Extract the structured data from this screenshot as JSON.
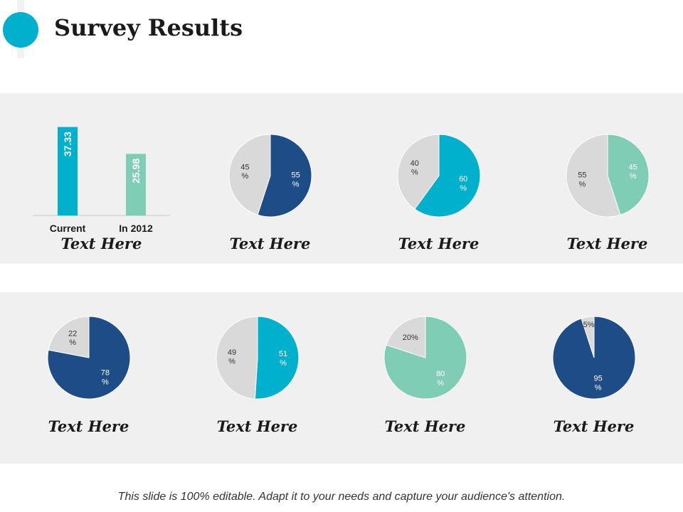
{
  "header": {
    "title": "Survey Results"
  },
  "colors": {
    "accent": "#00b0cc",
    "navy": "#1e4c86",
    "teal": "#00b0cc",
    "mint": "#7ecdb4",
    "gray": "#d9d9d9",
    "band": "#f0f0f0"
  },
  "chart_data": [
    {
      "type": "bar",
      "title": "",
      "categories": [
        "Current",
        "In 2012"
      ],
      "values": [
        37.33,
        25.98
      ],
      "value_labels": [
        "37.33",
        "25.98"
      ],
      "colors": [
        "#00b0cc",
        "#7ecdb4"
      ],
      "caption": "Text Here",
      "ylim": [
        0,
        45
      ]
    },
    {
      "type": "pie",
      "caption": "Text Here",
      "slices": [
        {
          "value": 55,
          "label": "55 %",
          "color": "#1e4c86",
          "text_color": "#ffffff"
        },
        {
          "value": 45,
          "label": "45 %",
          "color": "#d9d9d9",
          "text_color": "#333333"
        }
      ]
    },
    {
      "type": "pie",
      "caption": "Text Here",
      "slices": [
        {
          "value": 60,
          "label": "60 %",
          "color": "#00b0cc",
          "text_color": "#ffffff"
        },
        {
          "value": 40,
          "label": "40 %",
          "color": "#d9d9d9",
          "text_color": "#333333"
        }
      ]
    },
    {
      "type": "pie",
      "caption": "Text Here",
      "slices": [
        {
          "value": 45,
          "label": "45 %",
          "color": "#7ecdb4",
          "text_color": "#ffffff"
        },
        {
          "value": 55,
          "label": "55 %",
          "color": "#d9d9d9",
          "text_color": "#333333"
        }
      ]
    },
    {
      "type": "pie",
      "caption": "Text Here",
      "slices": [
        {
          "value": 78,
          "label": "78 %",
          "color": "#1e4c86",
          "text_color": "#ffffff"
        },
        {
          "value": 22,
          "label": "22 %",
          "color": "#d9d9d9",
          "text_color": "#333333"
        }
      ]
    },
    {
      "type": "pie",
      "caption": "Text Here",
      "slices": [
        {
          "value": 51,
          "label": "51 %",
          "color": "#00b0cc",
          "text_color": "#ffffff"
        },
        {
          "value": 49,
          "label": "49 %",
          "color": "#d9d9d9",
          "text_color": "#333333"
        }
      ]
    },
    {
      "type": "pie",
      "caption": "Text Here",
      "slices": [
        {
          "value": 80,
          "label": "80 %",
          "color": "#7ecdb4",
          "text_color": "#ffffff"
        },
        {
          "value": 20,
          "label": "20%",
          "color": "#d9d9d9",
          "text_color": "#333333"
        }
      ]
    },
    {
      "type": "pie",
      "caption": "Text Here",
      "slices": [
        {
          "value": 95,
          "label": "95 %",
          "color": "#1e4c86",
          "text_color": "#ffffff"
        },
        {
          "value": 5,
          "label": "5%",
          "color": "#d9d9d9",
          "text_color": "#333333"
        }
      ]
    }
  ],
  "footer": {
    "text": "This slide is 100% editable. Adapt it to your needs and capture your audience's attention."
  }
}
